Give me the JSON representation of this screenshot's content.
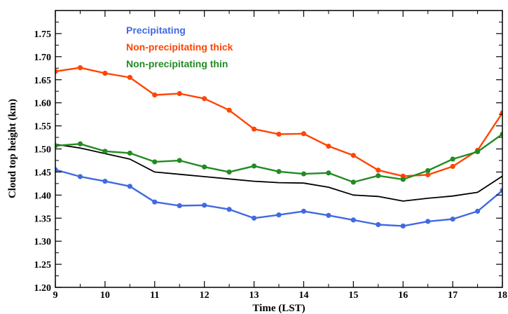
{
  "chart_data": {
    "type": "line",
    "title": "",
    "xlabel": "Time (LST)",
    "ylabel": "Cloud top height (km)",
    "xlim": [
      9,
      18
    ],
    "ylim": [
      1.2,
      1.8
    ],
    "xticks": [
      9,
      10,
      11,
      12,
      13,
      14,
      15,
      16,
      17,
      18
    ],
    "xtick_labels": [
      "9",
      "10",
      "11",
      "12",
      "13",
      "14",
      "15",
      "16",
      "17",
      "18"
    ],
    "yticks": [
      1.2,
      1.25,
      1.3,
      1.35,
      1.4,
      1.45,
      1.5,
      1.55,
      1.6,
      1.65,
      1.7,
      1.75
    ],
    "ytick_labels": [
      "1.20",
      "1.25",
      "1.30",
      "1.35",
      "1.40",
      "1.45",
      "1.50",
      "1.55",
      "1.60",
      "1.65",
      "1.70",
      "1.75"
    ],
    "grid": false,
    "legend_position": "top-left",
    "x": [
      9,
      9.5,
      10,
      10.5,
      11,
      11.5,
      12,
      12.5,
      13,
      13.5,
      14,
      14.5,
      15,
      15.5,
      16,
      16.5,
      17,
      17.5,
      18
    ],
    "series": [
      {
        "name": "Precipitating",
        "color": "#4169e1",
        "markers": true,
        "values": [
          1.455,
          1.44,
          1.43,
          1.419,
          1.385,
          1.377,
          1.378,
          1.369,
          1.35,
          1.357,
          1.365,
          1.356,
          1.346,
          1.336,
          1.333,
          1.343,
          1.348,
          1.365,
          1.41
        ]
      },
      {
        "name": "Non-precipitating thick",
        "color": "#ff4500",
        "markers": true,
        "values": [
          1.668,
          1.676,
          1.664,
          1.655,
          1.617,
          1.62,
          1.609,
          1.584,
          1.543,
          1.532,
          1.533,
          1.506,
          1.486,
          1.454,
          1.441,
          1.444,
          1.462,
          1.497,
          1.578
        ]
      },
      {
        "name": "Non-precipitating thin",
        "color": "#228b22",
        "markers": true,
        "values": [
          1.507,
          1.511,
          1.495,
          1.491,
          1.472,
          1.475,
          1.461,
          1.45,
          1.463,
          1.451,
          1.446,
          1.448,
          1.428,
          1.442,
          1.434,
          1.453,
          1.478,
          1.494,
          1.532
        ]
      },
      {
        "color": "#000000",
        "markers": false,
        "values": [
          1.51,
          1.502,
          1.49,
          1.478,
          1.45,
          1.445,
          1.44,
          1.435,
          1.43,
          1.427,
          1.426,
          1.417,
          1.4,
          1.397,
          1.387,
          1.393,
          1.398,
          1.406,
          1.441
        ]
      }
    ]
  }
}
